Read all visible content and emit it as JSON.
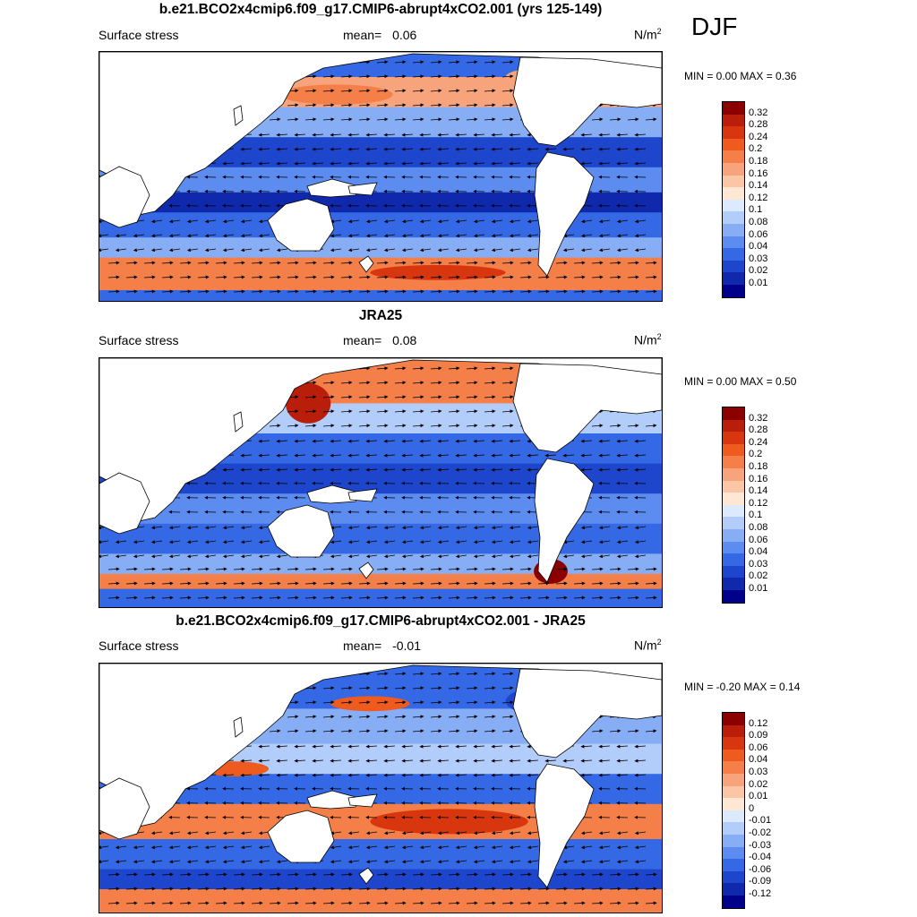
{
  "season": "DJF",
  "panels": [
    {
      "title": "b.e21.BCO2x4cmip6.f09_g17.CMIP6-abrupt4xCO2.001 (yrs 125-149)",
      "variable": "Surface stress",
      "mean_label": "mean=",
      "mean_value": "0.06",
      "units_base": "N/m",
      "units_exp": "2",
      "minmax": "MIN =   0.00 MAX =   0.36",
      "ticks": [
        "0.32",
        "0.28",
        "0.24",
        "0.2",
        "0.18",
        "0.16",
        "0.14",
        "0.12",
        "0.1",
        "0.08",
        "0.06",
        "0.04",
        "0.03",
        "0.02",
        "0.01"
      ],
      "colors": [
        "#8b0000",
        "#b81e0a",
        "#d7360e",
        "#ef5a1e",
        "#f47f48",
        "#f7a47c",
        "#fbc6a6",
        "#ffe7d3",
        "#dceaff",
        "#b2cdfa",
        "#87aef5",
        "#5c8cef",
        "#3568e4",
        "#1d46cc",
        "#0f28ac",
        "#00008b"
      ]
    },
    {
      "title": "JRA25",
      "variable": "Surface stress",
      "mean_label": "mean=",
      "mean_value": "0.08",
      "units_base": "N/m",
      "units_exp": "2",
      "minmax": "MIN =   0.00 MAX =   0.50",
      "ticks": [
        "0.32",
        "0.28",
        "0.24",
        "0.2",
        "0.18",
        "0.16",
        "0.14",
        "0.12",
        "0.1",
        "0.08",
        "0.06",
        "0.04",
        "0.03",
        "0.02",
        "0.01"
      ],
      "colors": [
        "#8b0000",
        "#b81e0a",
        "#d7360e",
        "#ef5a1e",
        "#f47f48",
        "#f7a47c",
        "#fbc6a6",
        "#ffe7d3",
        "#dceaff",
        "#b2cdfa",
        "#87aef5",
        "#5c8cef",
        "#3568e4",
        "#1d46cc",
        "#0f28ac",
        "#00008b"
      ]
    },
    {
      "title": "b.e21.BCO2x4cmip6.f09_g17.CMIP6-abrupt4xCO2.001 - JRA25",
      "variable": "Surface stress",
      "mean_label": "mean=",
      "mean_value": "-0.01",
      "units_base": "N/m",
      "units_exp": "2",
      "minmax": "MIN =  -0.20 MAX =   0.14",
      "ticks": [
        "0.12",
        "0.09",
        "0.06",
        "0.04",
        "0.03",
        "0.02",
        "0.01",
        "0",
        "-0.01",
        "-0.02",
        "-0.03",
        "-0.04",
        "-0.06",
        "-0.09",
        "-0.12"
      ],
      "colors": [
        "#8b0000",
        "#b81e0a",
        "#d7360e",
        "#ef5a1e",
        "#f47f48",
        "#f7a47c",
        "#fbc6a6",
        "#ffe7d3",
        "#dceaff",
        "#b2cdfa",
        "#87aef5",
        "#5c8cef",
        "#3568e4",
        "#1d46cc",
        "#0f28ac",
        "#00008b"
      ]
    }
  ]
}
